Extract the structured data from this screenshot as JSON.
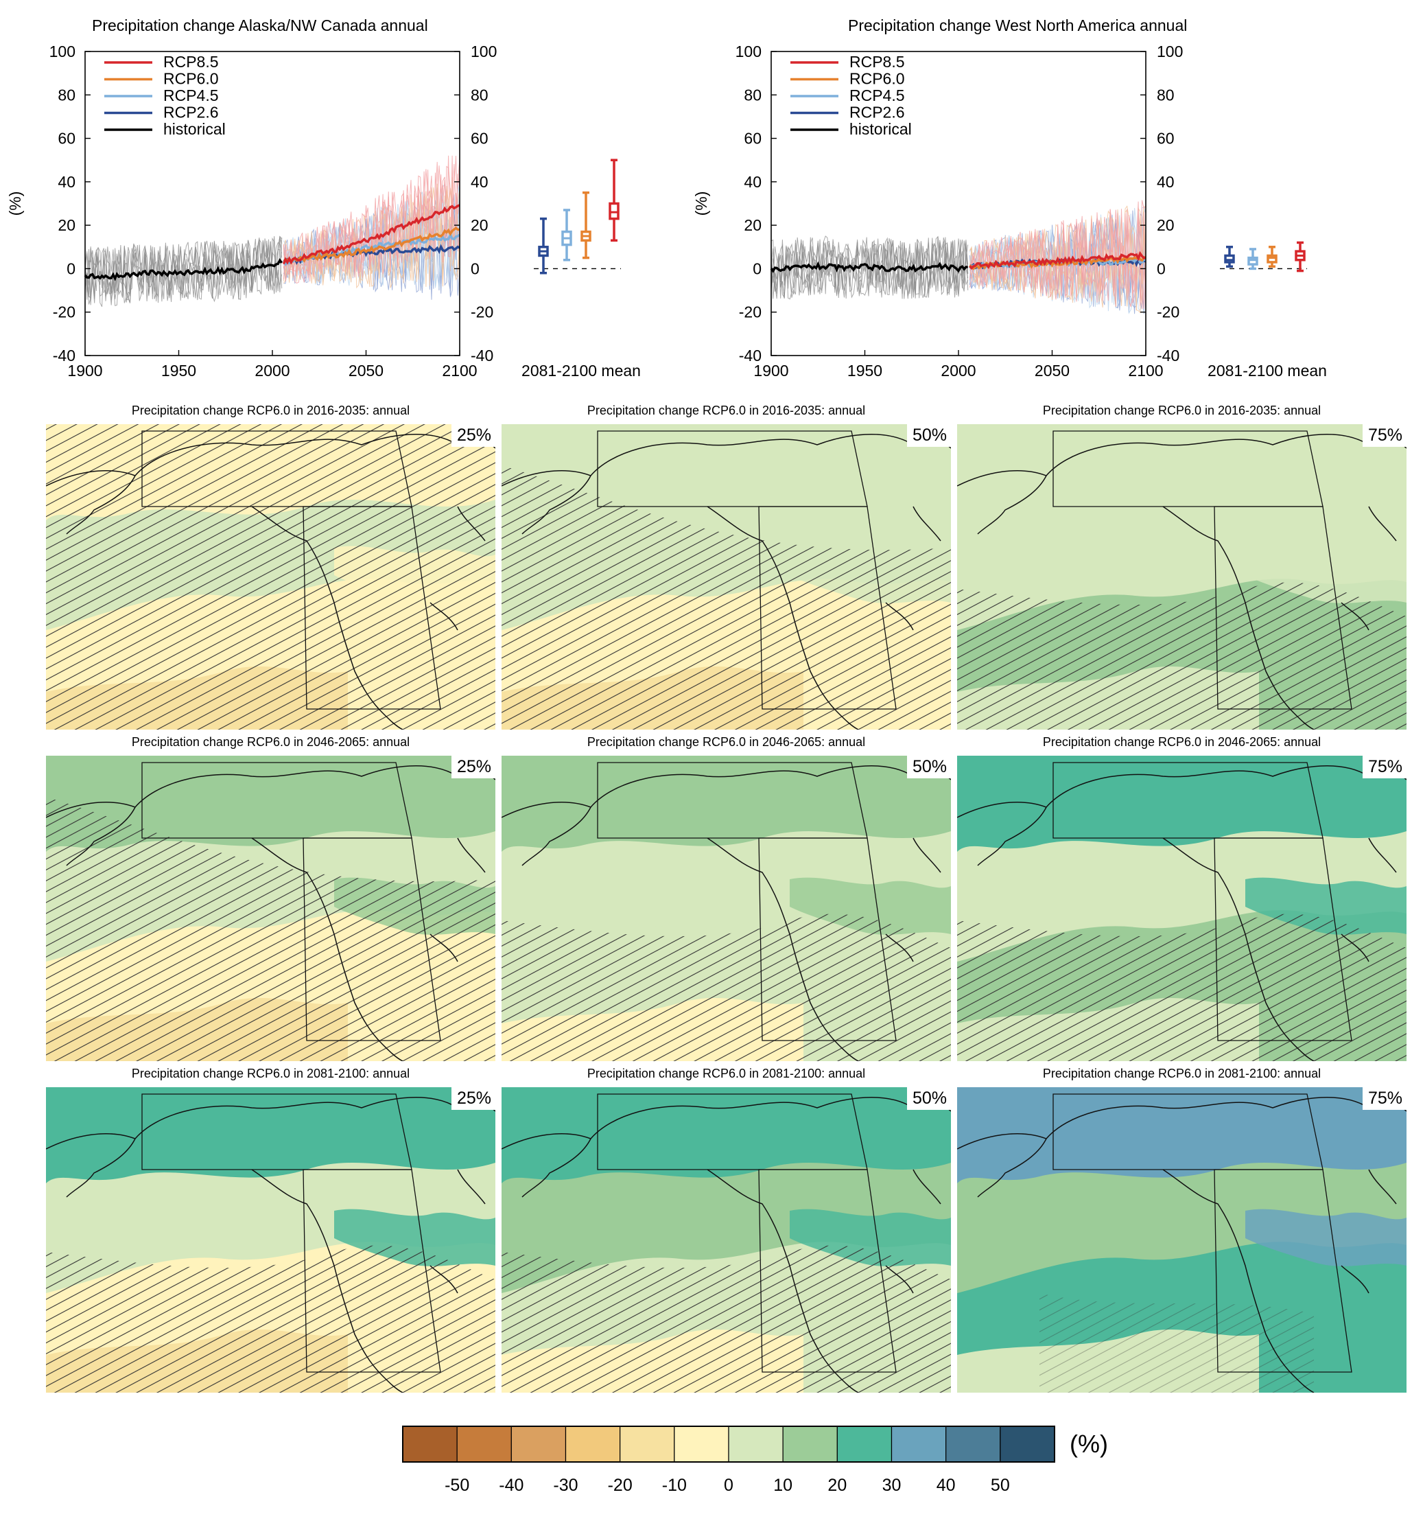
{
  "chart_data": [
    {
      "type": "line",
      "title": "Precipitation change Alaska/NW Canada annual",
      "ylabel": "(%)",
      "xlim": [
        1900,
        2100
      ],
      "ylim": [
        -40,
        100
      ],
      "xticks": [
        1900,
        1950,
        2000,
        2050,
        2100
      ],
      "yticks": [
        -40,
        -20,
        0,
        20,
        40,
        60,
        80,
        100
      ],
      "legend": [
        "RCP8.5",
        "RCP6.0",
        "RCP4.5",
        "RCP2.6",
        "historical"
      ],
      "legend_position": "top-left",
      "series": [
        {
          "name": "historical",
          "color": "#000000",
          "x": [
            1900,
            1910,
            1920,
            1930,
            1940,
            1950,
            1960,
            1970,
            1980,
            1990,
            2000,
            2005
          ],
          "y": [
            -3,
            -4,
            -3,
            -2,
            -2,
            -2,
            -1,
            -1,
            -1,
            0,
            2,
            3
          ]
        },
        {
          "name": "RCP2.6",
          "color": "#2a4a94",
          "x": [
            2006,
            2020,
            2040,
            2060,
            2080,
            2100
          ],
          "y": [
            3,
            5,
            7,
            8,
            9,
            9
          ]
        },
        {
          "name": "RCP4.5",
          "color": "#7fb0dc",
          "x": [
            2006,
            2020,
            2040,
            2060,
            2080,
            2100
          ],
          "y": [
            3,
            5,
            8,
            11,
            13,
            15
          ]
        },
        {
          "name": "RCP6.0",
          "color": "#e6822f",
          "x": [
            2006,
            2020,
            2040,
            2060,
            2080,
            2100
          ],
          "y": [
            3,
            5,
            7,
            10,
            14,
            18
          ]
        },
        {
          "name": "RCP8.5",
          "color": "#d7262b",
          "x": [
            2006,
            2020,
            2040,
            2060,
            2080,
            2100
          ],
          "y": [
            3,
            6,
            10,
            16,
            23,
            30
          ]
        }
      ],
      "mean_label": "2081-2100 mean",
      "boxes": [
        {
          "name": "RCP2.6",
          "color": "#2a4a94",
          "min": -2,
          "q1": 6,
          "median": 8,
          "q3": 10,
          "max": 23
        },
        {
          "name": "RCP4.5",
          "color": "#7fb0dc",
          "min": 4,
          "q1": 11,
          "median": 14,
          "q3": 17,
          "max": 27
        },
        {
          "name": "RCP6.0",
          "color": "#e6822f",
          "min": 5,
          "q1": 13,
          "median": 15,
          "q3": 17,
          "max": 35
        },
        {
          "name": "RCP8.5",
          "color": "#d7262b",
          "min": 13,
          "q1": 23,
          "median": 26,
          "q3": 30,
          "max": 50
        }
      ]
    },
    {
      "type": "line",
      "title": "Precipitation change West North America annual",
      "ylabel": "(%)",
      "xlim": [
        1900,
        2100
      ],
      "ylim": [
        -40,
        100
      ],
      "xticks": [
        1900,
        1950,
        2000,
        2050,
        2100
      ],
      "yticks": [
        -40,
        -20,
        0,
        20,
        40,
        60,
        80,
        100
      ],
      "legend": [
        "RCP8.5",
        "RCP6.0",
        "RCP4.5",
        "RCP2.6",
        "historical"
      ],
      "legend_position": "top-left",
      "series": [
        {
          "name": "historical",
          "color": "#000000",
          "x": [
            1900,
            1910,
            1920,
            1930,
            1940,
            1950,
            1960,
            1970,
            1980,
            1990,
            2000,
            2005
          ],
          "y": [
            0,
            0,
            1,
            1,
            0,
            1,
            0,
            0,
            0,
            1,
            0,
            1
          ]
        },
        {
          "name": "RCP2.6",
          "color": "#2a4a94",
          "x": [
            2006,
            2020,
            2040,
            2060,
            2080,
            2100
          ],
          "y": [
            1,
            2,
            3,
            3,
            3,
            3
          ]
        },
        {
          "name": "RCP4.5",
          "color": "#7fb0dc",
          "x": [
            2006,
            2020,
            2040,
            2060,
            2080,
            2100
          ],
          "y": [
            1,
            2,
            2,
            3,
            3,
            4
          ]
        },
        {
          "name": "RCP6.0",
          "color": "#e6822f",
          "x": [
            2006,
            2020,
            2040,
            2060,
            2080,
            2100
          ],
          "y": [
            1,
            2,
            2,
            3,
            4,
            5
          ]
        },
        {
          "name": "RCP8.5",
          "color": "#d7262b",
          "x": [
            2006,
            2020,
            2040,
            2060,
            2080,
            2100
          ],
          "y": [
            1,
            2,
            3,
            4,
            5,
            6
          ]
        }
      ],
      "mean_label": "2081-2100 mean",
      "boxes": [
        {
          "name": "RCP2.6",
          "color": "#2a4a94",
          "min": 1,
          "q1": 3,
          "median": 4,
          "q3": 6,
          "max": 10
        },
        {
          "name": "RCP4.5",
          "color": "#7fb0dc",
          "min": 0,
          "q1": 2,
          "median": 4,
          "q3": 5,
          "max": 9
        },
        {
          "name": "RCP6.0",
          "color": "#e6822f",
          "min": 1,
          "q1": 3,
          "median": 5,
          "q3": 6,
          "max": 10
        },
        {
          "name": "RCP8.5",
          "color": "#d7262b",
          "min": -1,
          "q1": 4,
          "median": 6,
          "q3": 8,
          "max": 12
        }
      ]
    }
  ],
  "maps": {
    "rows": [
      {
        "title": "Precipitation change RCP6.0 in 2016-2035: annual",
        "period": "2016-2035"
      },
      {
        "title": "Precipitation change RCP6.0 in 2046-2065: annual",
        "period": "2046-2065"
      },
      {
        "title": "Precipitation change RCP6.0 in 2081-2100: annual",
        "period": "2081-2100"
      }
    ],
    "percentiles": [
      "25%",
      "50%",
      "75%"
    ],
    "panels": [
      [
        "#d6e8bd",
        "#fff3bc",
        "#fff3bc",
        "#f7e1a0"
      ],
      [
        "#d6e8bd",
        "#d6e8bd",
        "#fff3bc",
        "#f7e1a0"
      ],
      [
        "#d6e8bd",
        "#d6e8bd",
        "#9ccc98",
        "#d6e8bd"
      ],
      [
        "#d6e8bd",
        "#9ccc98",
        "#fff3bc",
        "#f7e1a0"
      ],
      [
        "#d6e8bd",
        "#9ccc98",
        "#d6e8bd",
        "#fff3bc"
      ],
      [
        "#d6e8bd",
        "#4db89a",
        "#9ccc98",
        "#d6e8bd"
      ],
      [
        "#d6e8bd",
        "#4db89a",
        "#fff3bc",
        "#f7e1a0"
      ],
      [
        "#9ccc98",
        "#4db89a",
        "#d6e8bd",
        "#fff3bc"
      ],
      [
        "#9ccc98",
        "#6aa3bd",
        "#4db89a",
        "#d6e8bd"
      ]
    ]
  },
  "colorbar": {
    "unit": "(%)",
    "colors": [
      "#a8602a",
      "#c67c3b",
      "#daa060",
      "#f2c97c",
      "#f7e1a0",
      "#fff3bc",
      "#d6e8bd",
      "#9ccc98",
      "#4db89a",
      "#6aa3bd",
      "#4c7d97",
      "#2b5470"
    ],
    "ticks": [
      "-50",
      "-40",
      "-30",
      "-20",
      "-10",
      "0",
      "10",
      "20",
      "30",
      "40",
      "50"
    ]
  }
}
